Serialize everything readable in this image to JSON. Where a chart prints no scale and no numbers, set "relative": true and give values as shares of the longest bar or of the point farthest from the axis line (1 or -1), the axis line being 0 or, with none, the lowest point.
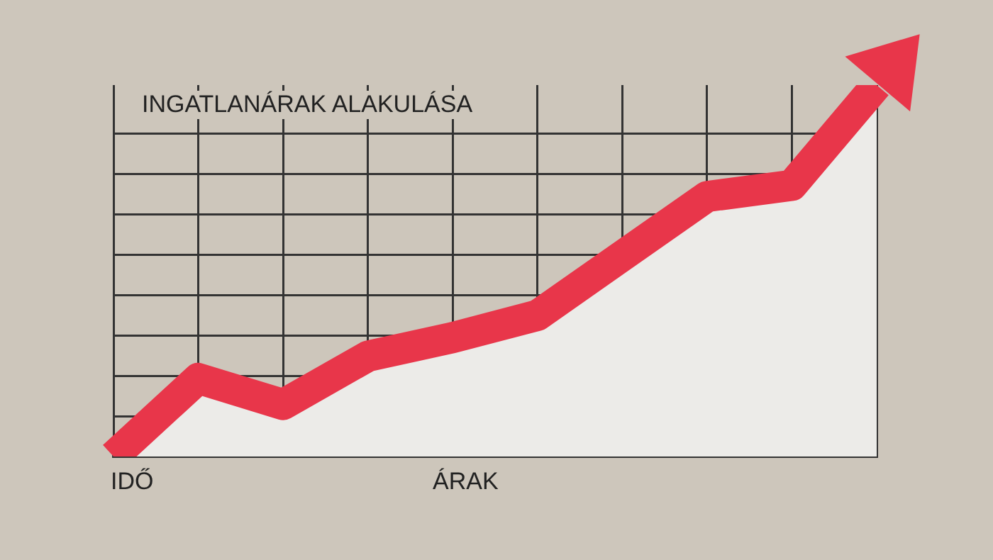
{
  "chart_data": {
    "type": "area",
    "title": "INGATLANÁRAK ALAKULÁSA",
    "xlabel": "ÁRAK",
    "annotations": [
      "IDŐ"
    ],
    "relative": true,
    "grid": true,
    "categories": [
      null,
      null,
      null,
      null,
      null,
      null,
      null,
      null,
      null,
      null
    ],
    "series": [
      {
        "color": "#e8364a",
        "values": [
          0,
          0.21,
          0.14,
          0.27,
          0.32,
          0.38,
          0.54,
          0.7,
          0.73,
          1
        ]
      }
    ]
  }
}
